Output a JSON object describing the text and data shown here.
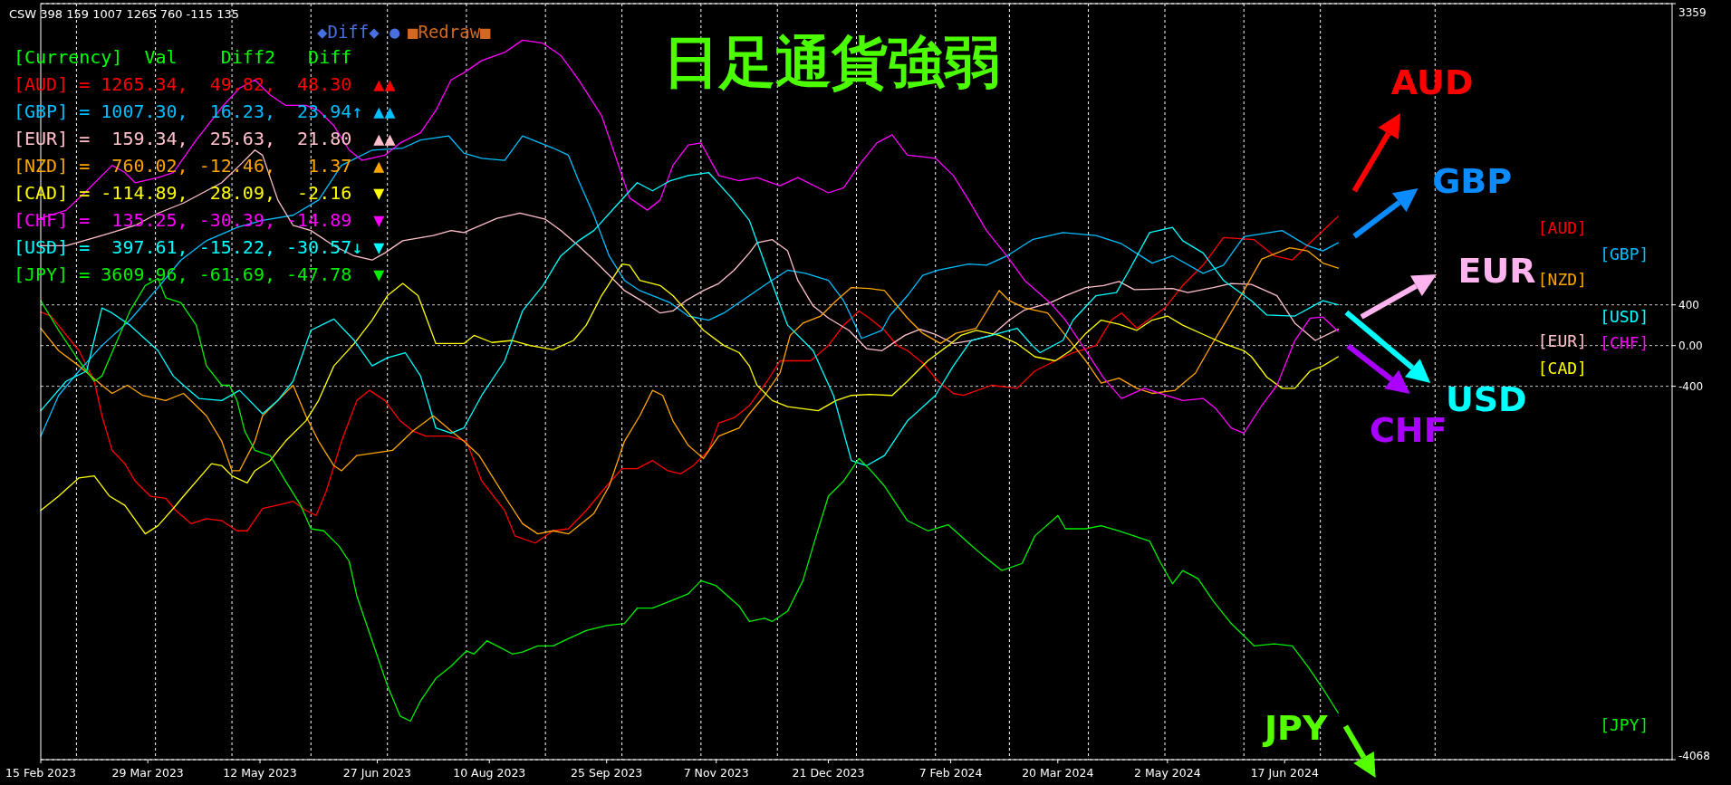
{
  "chart_data": {
    "type": "line",
    "title": "日足通貨強弱",
    "xlim": [
      "2023-02-15",
      "2024-11-16"
    ],
    "ylim": [
      -4068,
      3359
    ],
    "xticks": [
      {
        "value": "2023-02-15",
        "label": "15 Feb 2023"
      },
      {
        "value": "2023-03-29",
        "label": "29 Mar 2023"
      },
      {
        "value": "2023-05-12",
        "label": "12 May 2023"
      },
      {
        "value": "2023-06-27",
        "label": "27 Jun 2023"
      },
      {
        "value": "2023-08-10",
        "label": "10 Aug 2023"
      },
      {
        "value": "2023-09-25",
        "label": "25 Sep 2023"
      },
      {
        "value": "2023-11-07",
        "label": "7 Nov 2023"
      },
      {
        "value": "2023-12-21",
        "label": "21 Dec 2023"
      },
      {
        "value": "2024-02-07",
        "label": "7 Feb 2024"
      },
      {
        "value": "2024-03-20",
        "label": "20 Mar 2024"
      },
      {
        "value": "2024-05-02",
        "label": "2 May 2024"
      },
      {
        "value": "2024-06-17",
        "label": "17 Jun 2024"
      }
    ],
    "yticks": [
      3359,
      400,
      {
        "value": 0,
        "label": "0.00"
      },
      -400,
      -4068
    ],
    "grid": "y",
    "series": [
      {
        "name": "[AUD]",
        "color": "#ff0000",
        "x": [
          "2023-02-15",
          "2023-02-19",
          "2023-03-02",
          "2023-03-08",
          "2023-03-11",
          "2023-03-15",
          "2023-03-20",
          "2023-03-24",
          "2023-03-30",
          "2023-04-05",
          "2023-04-09",
          "2023-04-15",
          "2023-04-21",
          "2023-04-27",
          "2023-05-03",
          "2023-05-07",
          "2023-05-13",
          "2023-05-22",
          "2023-05-25",
          "2023-05-30",
          "2023-06-03",
          "2023-06-07",
          "2023-06-13",
          "2023-06-19",
          "2023-06-24",
          "2023-06-30",
          "2023-07-06",
          "2023-07-11",
          "2023-07-16",
          "2023-07-25",
          "2023-08-01",
          "2023-08-07",
          "2023-08-16",
          "2023-08-20",
          "2023-08-28",
          "2023-09-04",
          "2023-09-10",
          "2023-09-17",
          "2023-09-25",
          "2023-10-01",
          "2023-10-07",
          "2023-10-13",
          "2023-10-19",
          "2023-10-24",
          "2023-10-29",
          "2023-11-04",
          "2023-11-08",
          "2023-11-14",
          "2023-11-20",
          "2023-11-27",
          "2023-12-02",
          "2023-12-14",
          "2023-12-21",
          "2023-12-27",
          "2024-01-02",
          "2024-01-06",
          "2024-01-12",
          "2024-01-17",
          "2024-01-21",
          "2024-01-27",
          "2024-02-02",
          "2024-02-08",
          "2024-02-12",
          "2024-02-23",
          "2024-03-04",
          "2024-03-11",
          "2024-03-19",
          "2024-03-26",
          "2024-04-04",
          "2024-04-10",
          "2024-04-14",
          "2024-04-20",
          "2024-05-01",
          "2024-05-08",
          "2024-05-16",
          "2024-05-24",
          "2024-06-05",
          "2024-06-13",
          "2024-06-20",
          "2024-06-27",
          "2024-07-08"
        ],
        "values": [
          330,
          290,
          -50,
          -350,
          -690,
          -1030,
          -1160,
          -1330,
          -1480,
          -1500,
          -1620,
          -1750,
          -1700,
          -1720,
          -1820,
          -1820,
          -1600,
          -1550,
          -1530,
          -1620,
          -1670,
          -1430,
          -940,
          -540,
          -440,
          -540,
          -740,
          -840,
          -890,
          -890,
          -940,
          -1330,
          -1620,
          -1870,
          -1940,
          -1820,
          -1800,
          -1620,
          -1380,
          -1210,
          -1210,
          -1130,
          -1230,
          -1260,
          -1180,
          -1030,
          -760,
          -710,
          -590,
          -350,
          -150,
          -150,
          0,
          200,
          340,
          270,
          150,
          0,
          -50,
          -170,
          -350,
          -470,
          -490,
          -390,
          -420,
          -250,
          -150,
          -70,
          0,
          250,
          320,
          170,
          370,
          590,
          790,
          1060,
          1040,
          880,
          840,
          1010,
          1270
        ]
      },
      {
        "name": "[GBP]",
        "color": "#00bfff",
        "x": [
          "2023-02-15",
          "2023-02-22",
          "2023-03-02",
          "2023-03-11",
          "2023-03-22",
          "2023-04-02",
          "2023-04-11",
          "2023-04-21",
          "2023-05-03",
          "2023-05-13",
          "2023-05-25",
          "2023-06-04",
          "2023-06-13",
          "2023-06-25",
          "2023-07-07",
          "2023-07-14",
          "2023-07-25",
          "2023-07-31",
          "2023-08-07",
          "2023-08-16",
          "2023-08-23",
          "2023-09-04",
          "2023-09-10",
          "2023-09-14",
          "2023-09-20",
          "2023-09-26",
          "2023-10-02",
          "2023-10-08",
          "2023-10-20",
          "2023-10-27",
          "2023-11-04",
          "2023-11-10",
          "2023-11-17",
          "2023-11-27",
          "2023-12-05",
          "2023-12-12",
          "2023-12-21",
          "2023-12-27",
          "2024-01-03",
          "2024-01-11",
          "2024-01-14",
          "2024-01-21",
          "2024-01-27",
          "2024-02-02",
          "2024-02-14",
          "2024-02-21",
          "2024-02-29",
          "2024-03-10",
          "2024-03-22",
          "2024-04-04",
          "2024-04-14",
          "2024-04-26",
          "2024-05-04",
          "2024-05-16",
          "2024-05-24",
          "2024-06-01",
          "2024-06-16",
          "2024-06-26",
          "2024-07-02",
          "2024-07-08"
        ],
        "values": [
          -890,
          -490,
          -250,
          0,
          250,
          570,
          840,
          1030,
          1160,
          1230,
          1280,
          1430,
          1770,
          1920,
          1940,
          2020,
          2060,
          1890,
          1840,
          1820,
          2060,
          1940,
          1870,
          1620,
          1280,
          880,
          640,
          540,
          420,
          290,
          250,
          320,
          440,
          610,
          740,
          710,
          640,
          440,
          70,
          150,
          290,
          490,
          690,
          740,
          800,
          790,
          880,
          1040,
          1110,
          1080,
          1000,
          810,
          880,
          710,
          790,
          1070,
          1130,
          980,
          930,
          1010
        ]
      },
      {
        "name": "[EUR]",
        "color": "#ffc0cb",
        "x": [
          "2023-02-15",
          "2023-02-25",
          "2023-03-11",
          "2023-03-24",
          "2023-04-02",
          "2023-04-12",
          "2023-04-27",
          "2023-05-04",
          "2023-05-10",
          "2023-05-13",
          "2023-05-19",
          "2023-05-25",
          "2023-06-01",
          "2023-06-10",
          "2023-06-18",
          "2023-06-25",
          "2023-06-30",
          "2023-07-07",
          "2023-07-19",
          "2023-07-26",
          "2023-07-31",
          "2023-08-13",
          "2023-08-22",
          "2023-09-01",
          "2023-09-07",
          "2023-09-14",
          "2023-09-20",
          "2023-09-26",
          "2023-10-02",
          "2023-10-10",
          "2023-10-16",
          "2023-10-21",
          "2023-10-26",
          "2023-11-02",
          "2023-11-08",
          "2023-11-14",
          "2023-11-20",
          "2023-11-23",
          "2023-11-29",
          "2023-12-05",
          "2023-12-09",
          "2023-12-15",
          "2023-12-21",
          "2023-12-29",
          "2024-01-05",
          "2024-01-11",
          "2024-01-14",
          "2024-01-20",
          "2024-01-26",
          "2024-02-01",
          "2024-02-08",
          "2024-02-15",
          "2024-02-23",
          "2024-03-01",
          "2024-03-07",
          "2024-03-17",
          "2024-03-23",
          "2024-03-31",
          "2024-04-07",
          "2024-04-13",
          "2024-04-19",
          "2024-05-04",
          "2024-05-10",
          "2024-05-20",
          "2024-05-27",
          "2024-06-04",
          "2024-06-14",
          "2024-06-21",
          "2024-06-29",
          "2024-07-08"
        ],
        "values": [
          980,
          980,
          1080,
          1180,
          1300,
          1400,
          1600,
          1770,
          1920,
          1870,
          1430,
          1180,
          1130,
          980,
          880,
          840,
          910,
          1030,
          1080,
          1130,
          1110,
          1250,
          1300,
          1240,
          1130,
          980,
          840,
          690,
          540,
          420,
          320,
          340,
          440,
          540,
          610,
          740,
          910,
          1010,
          1040,
          930,
          640,
          390,
          270,
          150,
          -30,
          -50,
          0,
          100,
          160,
          110,
          20,
          50,
          100,
          250,
          350,
          420,
          490,
          570,
          590,
          630,
          550,
          560,
          520,
          570,
          610,
          600,
          490,
          220,
          50,
          160
        ]
      },
      {
        "name": "[NZD]",
        "color": "#ffa500",
        "x": [
          "2023-02-15",
          "2023-02-22",
          "2023-03-02",
          "2023-03-11",
          "2023-03-15",
          "2023-03-21",
          "2023-03-27",
          "2023-04-05",
          "2023-04-12",
          "2023-04-21",
          "2023-04-27",
          "2023-05-01",
          "2023-05-04",
          "2023-05-10",
          "2023-05-13",
          "2023-05-19",
          "2023-05-25",
          "2023-05-30",
          "2023-06-04",
          "2023-06-10",
          "2023-06-13",
          "2023-06-19",
          "2023-07-03",
          "2023-07-11",
          "2023-07-19",
          "2023-07-26",
          "2023-07-31",
          "2023-08-06",
          "2023-08-11",
          "2023-08-17",
          "2023-08-23",
          "2023-08-29",
          "2023-09-04",
          "2023-09-10",
          "2023-09-14",
          "2023-09-20",
          "2023-09-26",
          "2023-10-02",
          "2023-10-08",
          "2023-10-13",
          "2023-10-17",
          "2023-10-21",
          "2023-10-27",
          "2023-11-02",
          "2023-11-08",
          "2023-11-16",
          "2023-11-20",
          "2023-11-26",
          "2023-12-02",
          "2023-12-06",
          "2023-12-11",
          "2023-12-18",
          "2023-12-24",
          "2023-12-30",
          "2024-01-06",
          "2024-01-12",
          "2024-01-21",
          "2024-01-27",
          "2024-02-03",
          "2024-02-09",
          "2024-02-17",
          "2024-02-26",
          "2024-03-01",
          "2024-03-07",
          "2024-03-16",
          "2024-03-23",
          "2024-03-31",
          "2024-04-06",
          "2024-04-13",
          "2024-04-20",
          "2024-04-26",
          "2024-05-05",
          "2024-05-13",
          "2024-05-18",
          "2024-05-24",
          "2024-06-01",
          "2024-06-08",
          "2024-06-19",
          "2024-06-26",
          "2024-07-02",
          "2024-07-08"
        ],
        "values": [
          170,
          -50,
          -200,
          -390,
          -470,
          -390,
          -490,
          -540,
          -470,
          -690,
          -940,
          -1230,
          -1230,
          -940,
          -690,
          -540,
          -390,
          -690,
          -940,
          -1180,
          -1230,
          -1080,
          -1030,
          -840,
          -690,
          -840,
          -940,
          -1080,
          -1280,
          -1520,
          -1750,
          -1850,
          -1820,
          -1850,
          -1770,
          -1650,
          -1380,
          -940,
          -690,
          -440,
          -490,
          -740,
          -980,
          -1110,
          -890,
          -810,
          -670,
          -490,
          -270,
          100,
          220,
          290,
          440,
          570,
          560,
          540,
          270,
          120,
          20,
          120,
          170,
          540,
          440,
          370,
          320,
          100,
          -150,
          -370,
          -320,
          -420,
          -470,
          -440,
          -270,
          -50,
          200,
          540,
          850,
          960,
          930,
          810,
          760
        ]
      },
      {
        "name": "[CAD]",
        "color": "#ffff00",
        "x": [
          "2023-02-15",
          "2023-02-22",
          "2023-03-02",
          "2023-03-08",
          "2023-03-14",
          "2023-03-20",
          "2023-03-28",
          "2023-04-02",
          "2023-04-08",
          "2023-04-12",
          "2023-04-23",
          "2023-04-27",
          "2023-05-01",
          "2023-05-07",
          "2023-05-10",
          "2023-05-16",
          "2023-05-22",
          "2023-05-30",
          "2023-06-04",
          "2023-06-10",
          "2023-06-18",
          "2023-06-25",
          "2023-07-01",
          "2023-07-07",
          "2023-07-13",
          "2023-07-16",
          "2023-07-20",
          "2023-07-26",
          "2023-07-31",
          "2023-08-04",
          "2023-08-11",
          "2023-08-19",
          "2023-08-26",
          "2023-09-04",
          "2023-09-12",
          "2023-09-17",
          "2023-09-23",
          "2023-10-01",
          "2023-10-04",
          "2023-10-08",
          "2023-10-16",
          "2023-10-21",
          "2023-10-27",
          "2023-11-02",
          "2023-11-10",
          "2023-11-16",
          "2023-11-20",
          "2023-11-23",
          "2023-11-29",
          "2023-12-05",
          "2023-12-17",
          "2023-12-24",
          "2023-12-30",
          "2024-01-06",
          "2024-01-15",
          "2024-01-21",
          "2024-01-29",
          "2024-02-06",
          "2024-02-11",
          "2024-02-17",
          "2024-02-26",
          "2024-03-04",
          "2024-03-11",
          "2024-03-19",
          "2024-03-25",
          "2024-03-31",
          "2024-04-06",
          "2024-04-13",
          "2024-04-20",
          "2024-04-26",
          "2024-05-02",
          "2024-05-08",
          "2024-05-16",
          "2024-05-24",
          "2024-06-01",
          "2024-06-04",
          "2024-06-10",
          "2024-06-16",
          "2024-06-21",
          "2024-06-27",
          "2024-07-02",
          "2024-07-08"
        ],
        "values": [
          -1620,
          -1480,
          -1300,
          -1280,
          -1480,
          -1570,
          -1850,
          -1770,
          -1600,
          -1480,
          -1160,
          -1180,
          -1280,
          -1350,
          -1230,
          -1130,
          -940,
          -740,
          -540,
          -200,
          20,
          250,
          490,
          610,
          490,
          290,
          20,
          20,
          20,
          100,
          30,
          50,
          0,
          -40,
          50,
          200,
          490,
          800,
          790,
          640,
          590,
          490,
          320,
          150,
          0,
          -70,
          -200,
          -390,
          -540,
          -600,
          -640,
          -540,
          -490,
          -480,
          -490,
          -350,
          -150,
          0,
          100,
          150,
          100,
          20,
          -110,
          -150,
          -50,
          120,
          250,
          210,
          150,
          250,
          290,
          200,
          110,
          20,
          -50,
          -110,
          -310,
          -420,
          -420,
          -250,
          -200,
          -110
        ]
      },
      {
        "name": "[CHF]",
        "color": "#ff00ff",
        "x": [
          "2023-02-15",
          "2023-02-25",
          "2023-03-05",
          "2023-03-15",
          "2023-03-20",
          "2023-03-24",
          "2023-04-02",
          "2023-04-08",
          "2023-04-17",
          "2023-04-27",
          "2023-05-04",
          "2023-05-10",
          "2023-05-16",
          "2023-05-22",
          "2023-05-30",
          "2023-06-04",
          "2023-06-10",
          "2023-06-16",
          "2023-06-21",
          "2023-06-30",
          "2023-07-06",
          "2023-07-14",
          "2023-07-20",
          "2023-07-26",
          "2023-07-31",
          "2023-08-07",
          "2023-08-16",
          "2023-08-23",
          "2023-08-31",
          "2023-09-07",
          "2023-09-14",
          "2023-09-23",
          "2023-09-29",
          "2023-10-04",
          "2023-10-11",
          "2023-10-16",
          "2023-10-21",
          "2023-10-27",
          "2023-11-01",
          "2023-11-08",
          "2023-11-16",
          "2023-11-23",
          "2023-12-02",
          "2023-12-09",
          "2023-12-21",
          "2023-12-27",
          "2024-01-02",
          "2024-01-09",
          "2024-01-15",
          "2024-01-21",
          "2024-02-01",
          "2024-02-08",
          "2024-02-14",
          "2024-02-21",
          "2024-02-29",
          "2024-03-07",
          "2024-03-17",
          "2024-03-23",
          "2024-03-31",
          "2024-04-07",
          "2024-04-14",
          "2024-04-23",
          "2024-04-29",
          "2024-05-08",
          "2024-05-16",
          "2024-05-21",
          "2024-05-27",
          "2024-06-01",
          "2024-06-08",
          "2024-06-14",
          "2024-06-21",
          "2024-06-27",
          "2024-07-02",
          "2024-07-08"
        ],
        "values": [
          1250,
          1330,
          1520,
          1770,
          1700,
          1600,
          1650,
          1700,
          2020,
          2340,
          2530,
          2610,
          2460,
          2360,
          2360,
          2310,
          2160,
          1920,
          1820,
          1870,
          1990,
          2090,
          2310,
          2610,
          2680,
          2800,
          2880,
          3000,
          2970,
          2850,
          2610,
          2260,
          1820,
          1450,
          1330,
          1430,
          1770,
          1970,
          1990,
          1670,
          1620,
          1650,
          1570,
          1650,
          1500,
          1550,
          1770,
          1990,
          2070,
          1870,
          1840,
          1670,
          1430,
          1130,
          880,
          640,
          420,
          250,
          -50,
          -320,
          -520,
          -420,
          -470,
          -540,
          -520,
          -620,
          -810,
          -860,
          -590,
          -390,
          50,
          270,
          280,
          140
        ]
      },
      {
        "name": "[USD]",
        "color": "#00ffff",
        "x": [
          "2023-02-15",
          "2023-02-25",
          "2023-03-05",
          "2023-03-11",
          "2023-03-15",
          "2023-03-22",
          "2023-04-02",
          "2023-04-08",
          "2023-04-12",
          "2023-04-18",
          "2023-04-27",
          "2023-05-04",
          "2023-05-13",
          "2023-05-19",
          "2023-05-25",
          "2023-06-01",
          "2023-06-10",
          "2023-06-18",
          "2023-06-25",
          "2023-07-01",
          "2023-07-08",
          "2023-07-14",
          "2023-07-20",
          "2023-07-26",
          "2023-07-31",
          "2023-08-07",
          "2023-08-16",
          "2023-08-23",
          "2023-08-31",
          "2023-09-07",
          "2023-09-14",
          "2023-09-20",
          "2023-09-29",
          "2023-10-07",
          "2023-10-13",
          "2023-10-20",
          "2023-10-27",
          "2023-11-04",
          "2023-11-13",
          "2023-11-20",
          "2023-11-27",
          "2023-12-05",
          "2023-12-15",
          "2023-12-23",
          "2023-12-30",
          "2024-01-05",
          "2024-01-12",
          "2024-01-21",
          "2024-02-01",
          "2024-02-08",
          "2024-02-15",
          "2024-02-23",
          "2024-03-04",
          "2024-03-10",
          "2024-03-13",
          "2024-03-22",
          "2024-03-26",
          "2024-04-04",
          "2024-04-12",
          "2024-04-17",
          "2024-04-25",
          "2024-05-04",
          "2024-05-08",
          "2024-05-16",
          "2024-05-24",
          "2024-06-04",
          "2024-06-10",
          "2024-06-21",
          "2024-07-02",
          "2024-07-08"
        ],
        "values": [
          -640,
          -350,
          -250,
          370,
          320,
          200,
          -50,
          -300,
          -390,
          -520,
          -540,
          -440,
          -670,
          -540,
          -350,
          150,
          260,
          50,
          -200,
          -120,
          -70,
          -300,
          -810,
          -860,
          -810,
          -490,
          -150,
          340,
          590,
          880,
          1030,
          1130,
          1380,
          1600,
          1520,
          1620,
          1670,
          1700,
          1450,
          1230,
          740,
          200,
          -50,
          -490,
          -1130,
          -1180,
          -1080,
          -740,
          -490,
          -200,
          50,
          100,
          170,
          0,
          -70,
          50,
          250,
          490,
          520,
          740,
          1110,
          1160,
          1030,
          910,
          640,
          440,
          300,
          290,
          440,
          400
        ]
      },
      {
        "name": "[JPY]",
        "color": "#00ee00",
        "x": [
          "2023-02-15",
          "2023-02-22",
          "2023-03-02",
          "2023-03-08",
          "2023-03-11",
          "2023-03-17",
          "2023-03-22",
          "2023-03-28",
          "2023-04-02",
          "2023-04-05",
          "2023-04-11",
          "2023-04-17",
          "2023-04-21",
          "2023-04-27",
          "2023-04-30",
          "2023-05-03",
          "2023-05-06",
          "2023-05-10",
          "2023-05-16",
          "2023-05-22",
          "2023-05-28",
          "2023-06-01",
          "2023-06-06",
          "2023-06-12",
          "2023-06-16",
          "2023-06-19",
          "2023-06-25",
          "2023-07-01",
          "2023-07-06",
          "2023-07-10",
          "2023-07-14",
          "2023-07-20",
          "2023-07-26",
          "2023-08-01",
          "2023-08-04",
          "2023-08-09",
          "2023-08-13",
          "2023-08-19",
          "2023-08-23",
          "2023-08-29",
          "2023-09-04",
          "2023-09-10",
          "2023-09-17",
          "2023-09-25",
          "2023-10-02",
          "2023-10-07",
          "2023-10-13",
          "2023-10-20",
          "2023-10-27",
          "2023-11-01",
          "2023-11-07",
          "2023-11-16",
          "2023-11-20",
          "2023-11-26",
          "2023-11-29",
          "2023-12-05",
          "2023-12-11",
          "2023-12-15",
          "2023-12-21",
          "2023-12-27",
          "2024-01-02",
          "2024-01-06",
          "2024-01-12",
          "2024-01-21",
          "2024-01-29",
          "2024-02-06",
          "2024-02-14",
          "2024-02-20",
          "2024-02-27",
          "2024-03-06",
          "2024-03-11",
          "2024-03-20",
          "2024-03-23",
          "2024-03-31",
          "2024-04-06",
          "2024-04-13",
          "2024-04-25",
          "2024-04-29",
          "2024-05-04",
          "2024-05-08",
          "2024-05-14",
          "2024-05-20",
          "2024-05-27",
          "2024-06-05",
          "2024-06-13",
          "2024-06-20",
          "2024-06-26",
          "2024-07-02",
          "2024-07-08"
        ],
        "values": [
          440,
          150,
          -150,
          -350,
          -300,
          50,
          340,
          590,
          660,
          470,
          420,
          200,
          -200,
          -390,
          -390,
          -540,
          -840,
          -1030,
          -1080,
          -1330,
          -1570,
          -1800,
          -1820,
          -1970,
          -2120,
          -2460,
          -2900,
          -3340,
          -3640,
          -3690,
          -3490,
          -3270,
          -3150,
          -3000,
          -3030,
          -2900,
          -2950,
          -3030,
          -3010,
          -2950,
          -2950,
          -2880,
          -2800,
          -2750,
          -2730,
          -2580,
          -2580,
          -2510,
          -2440,
          -2310,
          -2360,
          -2560,
          -2710,
          -2680,
          -2710,
          -2610,
          -2310,
          -1970,
          -1480,
          -1330,
          -1110,
          -1210,
          -1380,
          -1720,
          -1820,
          -1760,
          -1940,
          -2070,
          -2210,
          -2140,
          -1870,
          -1670,
          -1800,
          -1800,
          -1770,
          -1820,
          -1920,
          -2120,
          -2340,
          -2210,
          -2290,
          -2510,
          -2730,
          -2950,
          -2930,
          -2950,
          -3150,
          -3370,
          -3610
        ]
      }
    ],
    "ref_lines": [
      {
        "axis": "x",
        "value": "2023-03-01",
        "color": "#ffffff",
        "line_style": "dashed"
      },
      {
        "axis": "x",
        "value": "2023-04-01",
        "color": "#ffffff",
        "line_style": "dashed"
      },
      {
        "axis": "x",
        "value": "2023-05-01",
        "color": "#ffffff",
        "line_style": "dashed"
      },
      {
        "axis": "x",
        "value": "2023-06-01",
        "color": "#ffffff",
        "line_style": "dashed"
      },
      {
        "axis": "x",
        "value": "2023-07-01",
        "color": "#ffffff",
        "line_style": "dashed"
      },
      {
        "axis": "x",
        "value": "2023-08-01",
        "color": "#ffffff",
        "line_style": "dashed"
      },
      {
        "axis": "x",
        "value": "2023-09-01",
        "color": "#ffffff",
        "line_style": "dashed"
      },
      {
        "axis": "x",
        "value": "2023-10-01",
        "color": "#ffffff",
        "line_style": "dashed"
      },
      {
        "axis": "x",
        "value": "2023-11-01",
        "color": "#ffffff",
        "line_style": "dashed"
      },
      {
        "axis": "x",
        "value": "2023-12-01",
        "color": "#ffffff",
        "line_style": "dashed"
      },
      {
        "axis": "x",
        "value": "2024-01-01",
        "color": "#ffffff",
        "line_style": "dashed"
      },
      {
        "axis": "x",
        "value": "2024-02-01",
        "color": "#ffffff",
        "line_style": "dashed"
      },
      {
        "axis": "x",
        "value": "2024-03-01",
        "color": "#ffffff",
        "line_style": "dashed"
      },
      {
        "axis": "x",
        "value": "2024-04-01",
        "color": "#ffffff",
        "line_style": "dashed"
      },
      {
        "axis": "x",
        "value": "2024-05-01",
        "color": "#ffffff",
        "line_style": "dashed"
      },
      {
        "axis": "x",
        "value": "2024-06-01",
        "color": "#ffffff",
        "line_style": "dashed"
      },
      {
        "axis": "x",
        "value": "2024-07-01",
        "color": "#ffffff",
        "line_style": "dashed"
      },
      {
        "axis": "x",
        "value": "2024-08-15",
        "color": "#ffffff",
        "line_style": "dashed"
      }
    ],
    "annotations": [
      "CSW 398 159 1007 1265 760 -115 135",
      "[Currency]  Val    Diff2   Diff",
      "[AUD] = 1265.34,  49.82,  48.30  ▲▲",
      "[GBP] = 1007.30,  16.23,  23.94↑ ▲▲",
      "[EUR] =  159.34,  25.63,  21.80  ▲▲",
      "[NZD] =  760.02, -12.46,   1.37  ▲",
      "[CAD] = -114.89,  28.09,  -2.16  ▼",
      "[CHF] =  135.25, -30.39, -14.89  ▼",
      "[USD] =  397.61, -15.22, -30.57↓ ▼",
      "[JPY] = 3609.96, -61.69, -47.78  ▼",
      "◆Diff◆ ●",
      "■Redraw■",
      "AUD",
      "GBP",
      "EUR",
      "USD",
      "CHF",
      "JPY"
    ]
  }
}
